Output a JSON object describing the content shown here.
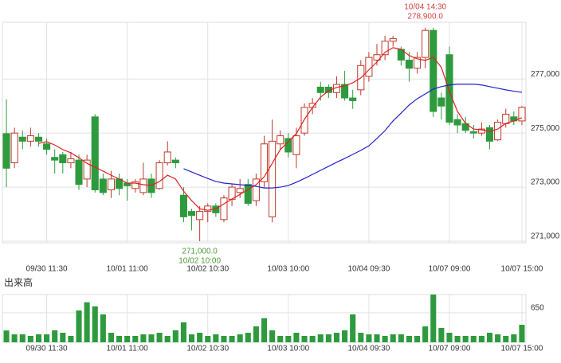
{
  "chart_data": [
    {
      "type": "candlestick",
      "categories": [
        null,
        null,
        null,
        null,
        null,
        "09/30 11:30",
        null,
        null,
        null,
        null,
        null,
        null,
        null,
        null,
        null,
        "10/01 11:00",
        null,
        null,
        null,
        null,
        null,
        null,
        null,
        null,
        null,
        "10/02 10:30",
        null,
        null,
        null,
        null,
        null,
        null,
        null,
        null,
        null,
        "10/03 10:00",
        null,
        null,
        null,
        null,
        null,
        null,
        null,
        null,
        null,
        "10/04 09:30",
        null,
        null,
        null,
        null,
        null,
        null,
        null,
        null,
        null,
        "10/07 09:00",
        null,
        null,
        null,
        null,
        null,
        null,
        null,
        null,
        "10/07 15:00"
      ],
      "open": [
        274980,
        273900,
        274850,
        274700,
        274850,
        274600,
        274100,
        274200,
        273900,
        274000,
        273300,
        275600,
        273300,
        272900,
        273300,
        273150,
        272950,
        272800,
        273300,
        272950,
        273900,
        274000,
        272700,
        272100,
        271800,
        272100,
        272300,
        271800,
        272550,
        272800,
        273100,
        272500,
        273200,
        271900,
        274600,
        274800,
        274200,
        275000,
        275950,
        276700,
        276700,
        276500,
        276800,
        276300,
        276600,
        277100,
        277700,
        277900,
        278400,
        278100,
        277700,
        277400,
        277800,
        278800,
        276300,
        277900,
        275500,
        275350,
        275050,
        275000,
        275200,
        274750,
        275350,
        275600,
        275450
      ],
      "high": [
        276250,
        275200,
        275100,
        275200,
        275000,
        274800,
        274400,
        274300,
        274300,
        274200,
        274200,
        275700,
        273500,
        273600,
        273500,
        273300,
        273300,
        273900,
        273500,
        274000,
        274700,
        274100,
        273000,
        272200,
        272300,
        272400,
        272400,
        272700,
        273100,
        273300,
        273300,
        273500,
        274900,
        275500,
        275100,
        275000,
        275200,
        276100,
        276300,
        276900,
        276800,
        277100,
        277300,
        276600,
        277700,
        278000,
        278300,
        278600,
        278600,
        278200,
        278000,
        278000,
        278900,
        278900,
        276500,
        278200,
        275700,
        275600,
        275300,
        275400,
        275300,
        275500,
        275900,
        275800,
        276000
      ],
      "low": [
        273000,
        273700,
        274400,
        274500,
        274500,
        274200,
        273500,
        273500,
        273700,
        272900,
        273000,
        272800,
        272700,
        272600,
        272700,
        272500,
        272800,
        272700,
        272600,
        272900,
        273800,
        273700,
        271700,
        271400,
        271000,
        271700,
        271900,
        271700,
        272300,
        272600,
        272300,
        272300,
        273000,
        271700,
        274400,
        274100,
        273700,
        274900,
        275700,
        276200,
        276300,
        276300,
        276200,
        275900,
        276400,
        276900,
        277500,
        277700,
        278200,
        277500,
        276900,
        277200,
        277400,
        275600,
        275500,
        275300,
        275000,
        275000,
        274800,
        274900,
        274400,
        274700,
        275200,
        275300,
        275300
      ],
      "close": [
        273700,
        275000,
        274700,
        274900,
        274700,
        274400,
        274000,
        273900,
        274050,
        273100,
        274000,
        272900,
        272800,
        273300,
        272950,
        273050,
        273200,
        273300,
        272800,
        273900,
        274300,
        273900,
        271900,
        271950,
        272100,
        272300,
        272050,
        272600,
        273000,
        272950,
        272400,
        273300,
        274600,
        274700,
        274900,
        274300,
        274900,
        275950,
        276100,
        276500,
        276500,
        276800,
        276300,
        276200,
        277500,
        277800,
        277900,
        278400,
        278500,
        277700,
        277400,
        277800,
        278800,
        275800,
        276000,
        275400,
        275300,
        275100,
        275000,
        275150,
        274700,
        275400,
        275700,
        275450,
        275950
      ],
      "lines": [
        {
          "color": "#e02020",
          "values": [
            null,
            null,
            null,
            null,
            274620,
            274680,
            274560,
            274390,
            274270,
            274090,
            273880,
            273740,
            273590,
            273440,
            273300,
            273150,
            273150,
            273090,
            273060,
            273210,
            273440,
            273300,
            272850,
            272500,
            272200,
            272140,
            272200,
            272380,
            272560,
            272730,
            272910,
            273090,
            273380,
            273880,
            274390,
            274680,
            274980,
            275510,
            275950,
            276330,
            276570,
            276690,
            276750,
            276860,
            277040,
            277340,
            277630,
            277990,
            278160,
            278100,
            277870,
            277750,
            277690,
            277810,
            277430,
            276540,
            275800,
            275360,
            275150,
            275120,
            275060,
            275150,
            275360,
            275450,
            275570
          ]
        },
        {
          "color": "#2222cc",
          "values": [
            null,
            null,
            null,
            null,
            null,
            null,
            null,
            null,
            null,
            null,
            null,
            null,
            null,
            null,
            null,
            null,
            null,
            null,
            null,
            null,
            null,
            null,
            273680,
            273560,
            273440,
            273320,
            273210,
            273150,
            273120,
            273090,
            273060,
            273030,
            272970,
            272970,
            273000,
            273060,
            273180,
            273320,
            273470,
            273620,
            273770,
            273920,
            274060,
            274210,
            274360,
            274530,
            274800,
            275090,
            275450,
            275740,
            276040,
            276270,
            276450,
            276630,
            276720,
            276780,
            276810,
            276810,
            276810,
            276780,
            276720,
            276660,
            276600,
            276550,
            276510
          ]
        }
      ],
      "up_color": "#c0392b",
      "down_color": "#2e9a3e",
      "ylim": [
        270940,
        279100
      ],
      "yticks": [
        {
          "value": 271000,
          "label": "271,000"
        },
        {
          "value": 273000,
          "label": "273,000"
        },
        {
          "value": 275000,
          "label": "275,000"
        },
        {
          "value": 277000,
          "label": "277,000"
        }
      ],
      "annotations": [
        {
          "text": "10/04 14:30",
          "color": "#d04040"
        },
        {
          "text": "278,900.0",
          "color": "#d04040"
        },
        {
          "text": "271,000.0",
          "color": "#4a9a3a"
        },
        {
          "text": "10/02 10:00",
          "color": "#4a9a3a"
        }
      ],
      "grid": true
    },
    {
      "type": "bar",
      "title": "出来高",
      "color": "#2e9a3e",
      "categories": [
        null,
        null,
        null,
        null,
        null,
        "09/30 11:30",
        null,
        null,
        null,
        null,
        null,
        null,
        null,
        null,
        null,
        "10/01 11:00",
        null,
        null,
        null,
        null,
        null,
        null,
        null,
        null,
        null,
        "10/02 10:30",
        null,
        null,
        null,
        null,
        null,
        null,
        null,
        null,
        null,
        "10/03 10:00",
        null,
        null,
        null,
        null,
        null,
        null,
        null,
        null,
        null,
        "10/04 09:30",
        null,
        null,
        null,
        null,
        null,
        null,
        null,
        null,
        null,
        "10/07 09:00",
        null,
        null,
        null,
        null,
        null,
        null,
        null,
        null,
        "10/07 15:00"
      ],
      "values": [
        260,
        175,
        175,
        140,
        175,
        175,
        265,
        210,
        140,
        700,
        880,
        790,
        615,
        210,
        140,
        140,
        140,
        175,
        175,
        210,
        140,
        265,
        440,
        175,
        210,
        140,
        175,
        140,
        140,
        175,
        210,
        350,
        530,
        265,
        140,
        140,
        210,
        140,
        140,
        175,
        175,
        210,
        265,
        615,
        210,
        175,
        175,
        140,
        175,
        175,
        140,
        140,
        350,
        1050,
        315,
        210,
        140,
        140,
        140,
        140,
        210,
        175,
        140,
        175,
        385
      ],
      "ylim": [
        0,
        1050
      ],
      "yticks": [
        650
      ],
      "grid": true
    }
  ]
}
